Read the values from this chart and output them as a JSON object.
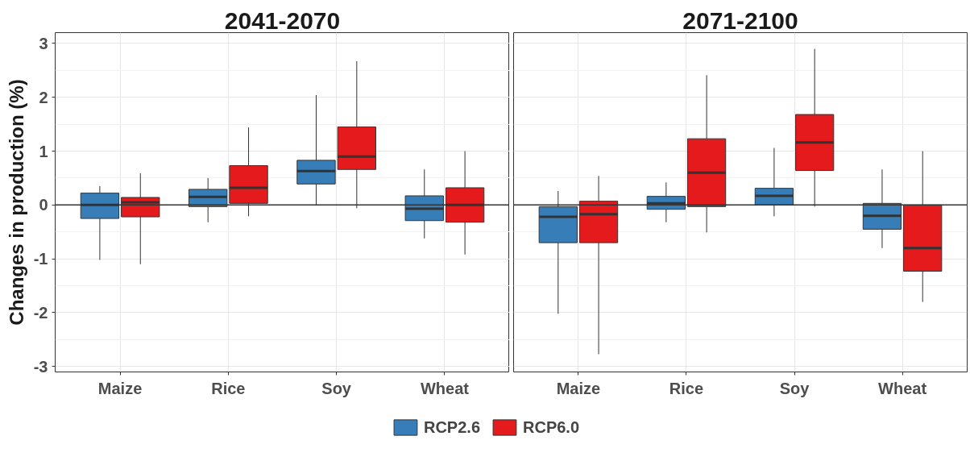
{
  "chart_data": [
    {
      "type": "box",
      "title": "2041-2070",
      "ylabel": "Changes in production (%)",
      "categories": [
        "Maize",
        "Rice",
        "Soy",
        "Wheat"
      ],
      "ylim": [
        -3.1,
        3.2
      ],
      "yticks": [
        -3,
        -2,
        -1,
        0,
        1,
        2,
        3
      ],
      "grid": true,
      "legend": "bottom",
      "ref_lines": [
        {
          "axis": "y",
          "value": 0
        }
      ],
      "series": [
        {
          "name": "RCP2.6",
          "color": "#377eb8",
          "boxes": [
            {
              "low": -1.02,
              "q1": -0.25,
              "median": 0.0,
              "q3": 0.22,
              "high": 0.35
            },
            {
              "low": -0.32,
              "q1": -0.03,
              "median": 0.15,
              "q3": 0.29,
              "high": 0.5
            },
            {
              "low": 0.0,
              "q1": 0.39,
              "median": 0.63,
              "q3": 0.83,
              "high": 2.04
            },
            {
              "low": -0.62,
              "q1": -0.29,
              "median": -0.07,
              "q3": 0.17,
              "high": 0.66
            }
          ]
        },
        {
          "name": "RCP6.0",
          "color": "#e41a1c",
          "boxes": [
            {
              "low": -1.1,
              "q1": -0.22,
              "median": 0.05,
              "q3": 0.14,
              "high": 0.59
            },
            {
              "low": -0.21,
              "q1": 0.03,
              "median": 0.32,
              "q3": 0.73,
              "high": 1.44
            },
            {
              "low": -0.06,
              "q1": 0.66,
              "median": 0.9,
              "q3": 1.45,
              "high": 2.67
            },
            {
              "low": -0.92,
              "q1": -0.32,
              "median": 0.0,
              "q3": 0.32,
              "high": 1.0
            }
          ]
        }
      ]
    },
    {
      "type": "box",
      "title": "2071-2100",
      "categories": [
        "Maize",
        "Rice",
        "Soy",
        "Wheat"
      ],
      "ylim": [
        -3.1,
        3.2
      ],
      "yticks": [
        -3,
        -2,
        -1,
        0,
        1,
        2,
        3
      ],
      "tick_labels": "x",
      "grid": true,
      "ref_lines": [
        {
          "axis": "y",
          "value": 0
        }
      ],
      "series": [
        {
          "color": "#377eb8",
          "boxes": [
            {
              "low": -2.02,
              "q1": -0.7,
              "median": -0.22,
              "q3": -0.03,
              "high": 0.26
            },
            {
              "low": -0.32,
              "q1": -0.08,
              "median": 0.03,
              "q3": 0.16,
              "high": 0.42
            },
            {
              "low": -0.21,
              "q1": 0.0,
              "median": 0.17,
              "q3": 0.31,
              "high": 1.06
            },
            {
              "low": -0.8,
              "q1": -0.45,
              "median": -0.2,
              "q3": 0.03,
              "high": 0.66
            }
          ]
        },
        {
          "color": "#e41a1c",
          "boxes": [
            {
              "low": -2.77,
              "q1": -0.7,
              "median": -0.17,
              "q3": 0.07,
              "high": 0.54
            },
            {
              "low": -0.51,
              "q1": -0.03,
              "median": 0.6,
              "q3": 1.23,
              "high": 2.41
            },
            {
              "low": -0.03,
              "q1": 0.64,
              "median": 1.16,
              "q3": 1.68,
              "high": 2.9
            },
            {
              "low": -1.8,
              "q1": -1.23,
              "median": -0.8,
              "q3": 0.0,
              "high": 1.0
            }
          ]
        }
      ]
    }
  ]
}
